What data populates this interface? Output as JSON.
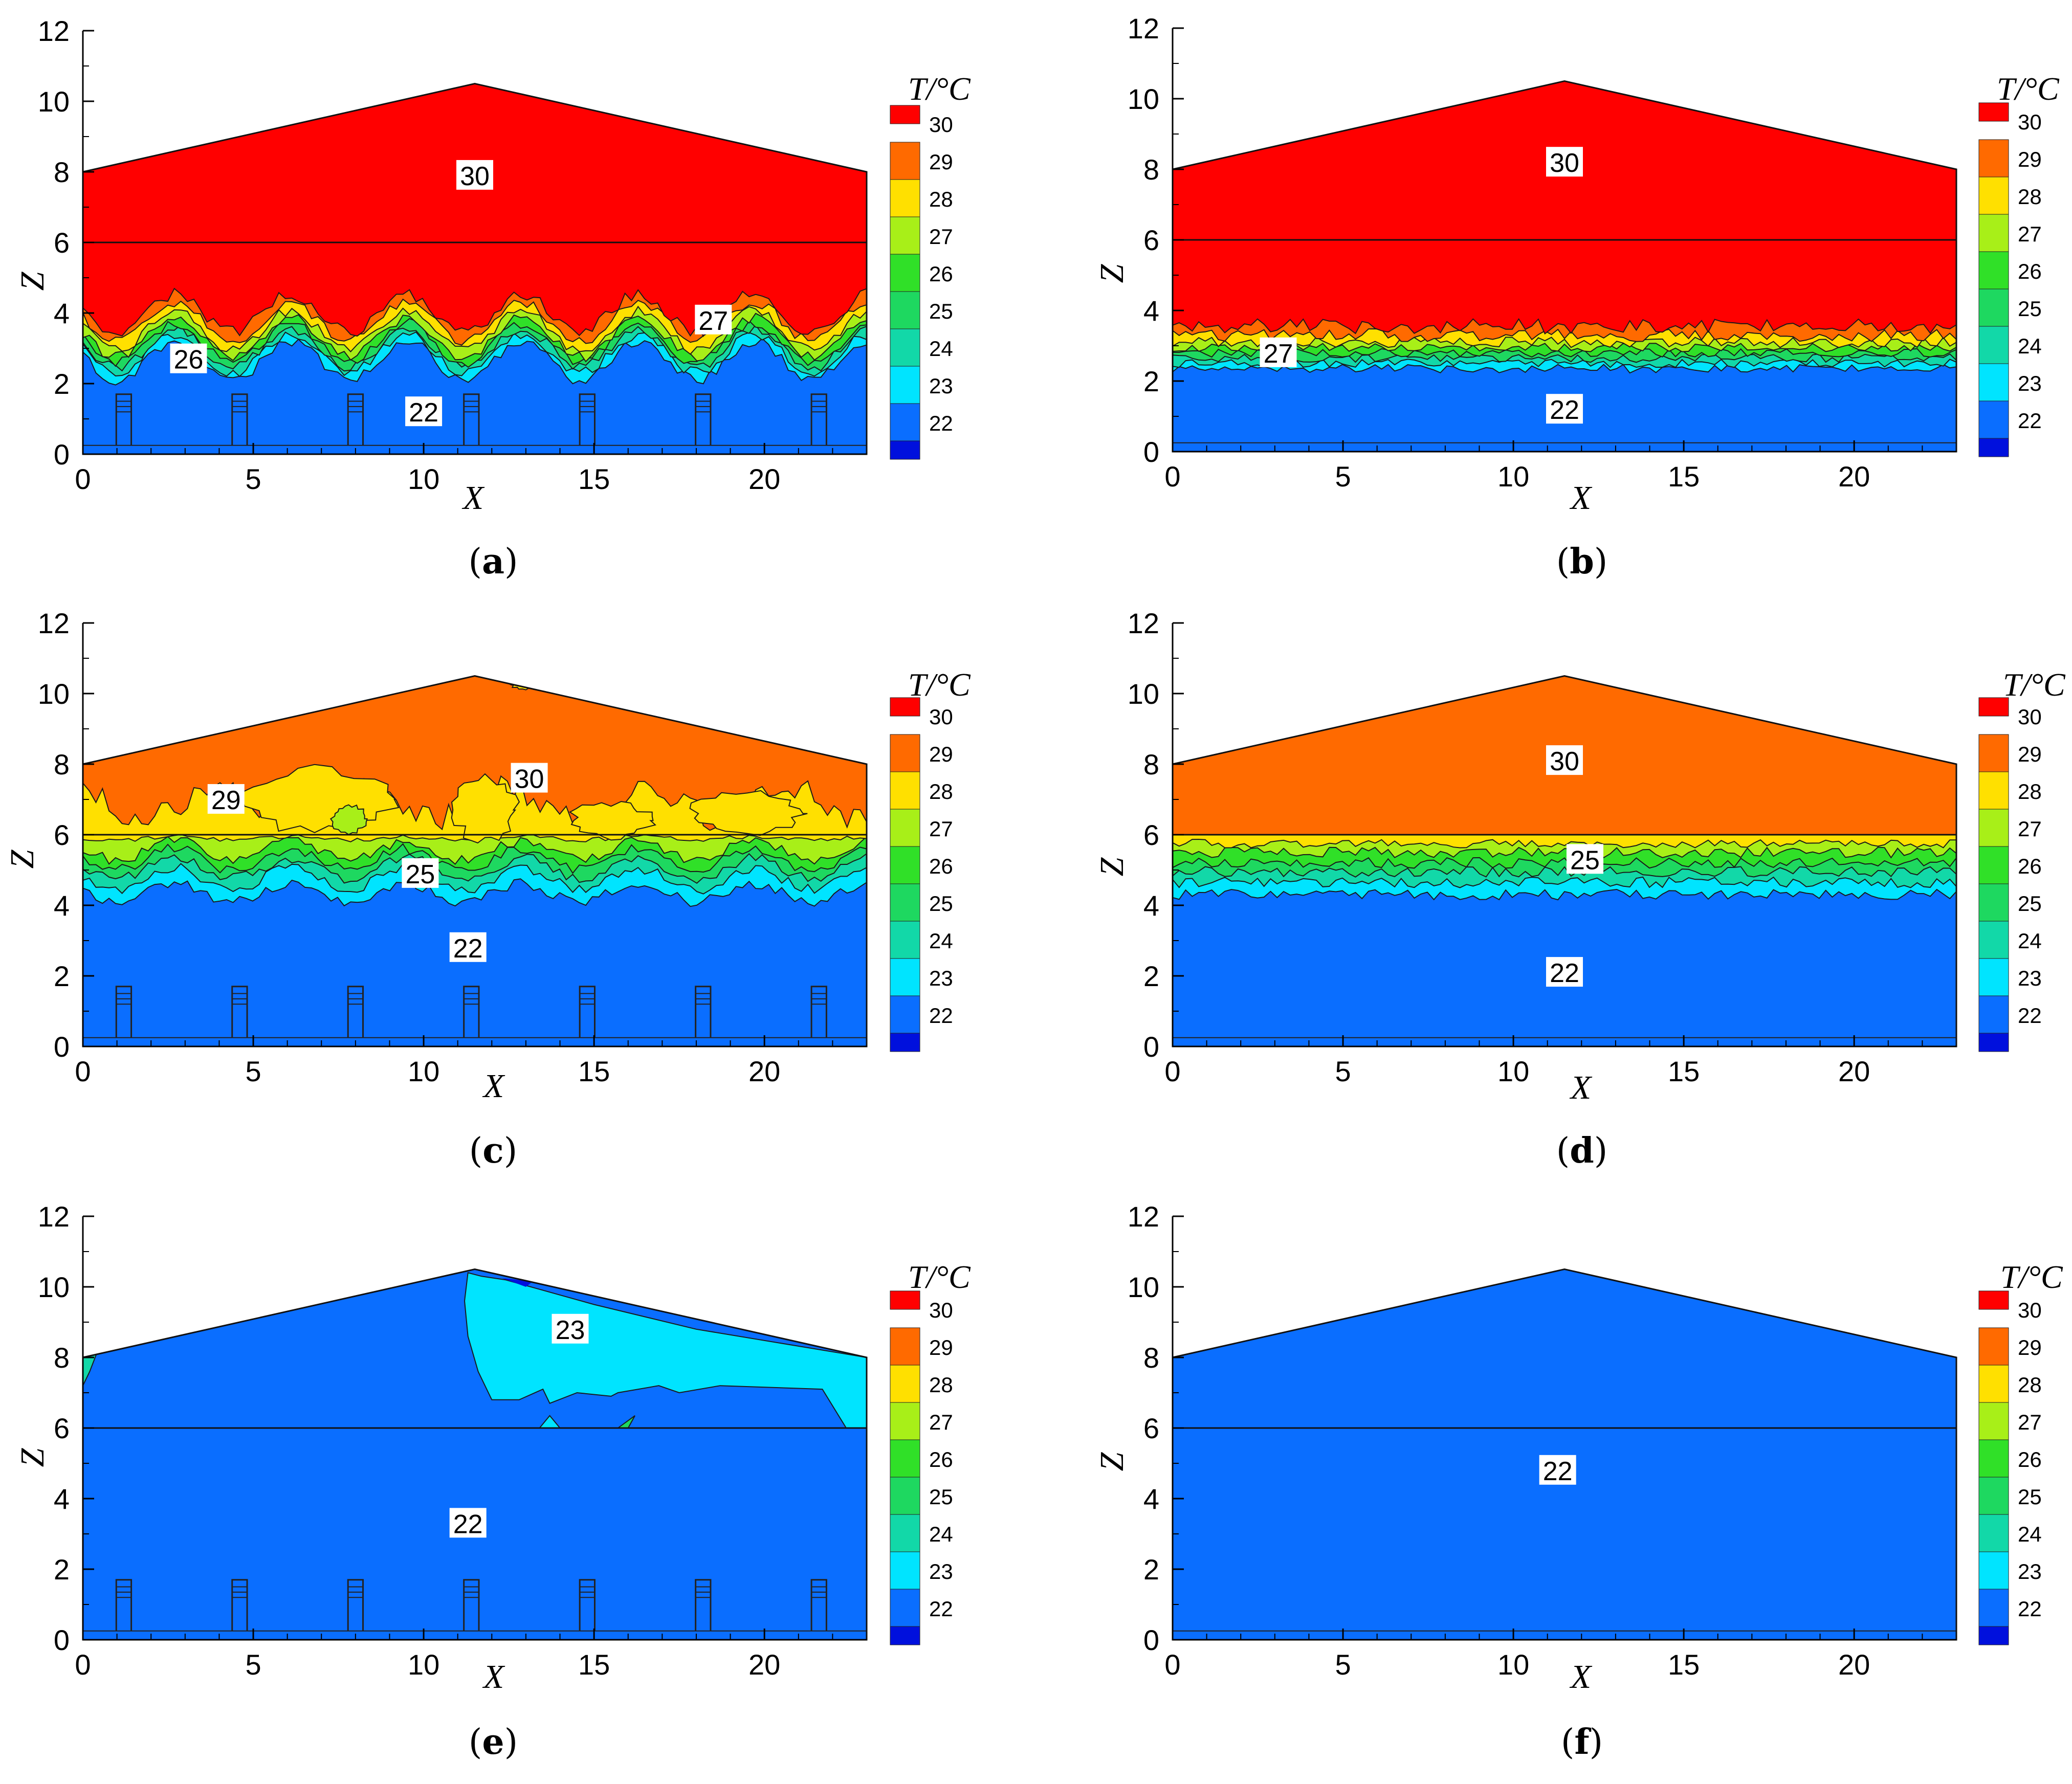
{
  "figure": {
    "colorbar": {
      "title": "T/°C",
      "labels": [
        "30",
        "29",
        "28",
        "27",
        "26",
        "25",
        "24",
        "23",
        "22"
      ],
      "colors": [
        "#ff0000",
        "#ff6a00",
        "#ffe000",
        "#a8ef18",
        "#30e028",
        "#1ed860",
        "#12d8a8",
        "#00e4ff",
        "#0a6eff",
        "#0010dd"
      ]
    }
  },
  "chart_data": [
    {
      "type": "contour",
      "panel": "a",
      "caption_letter": "a",
      "xlabel": "X",
      "ylabel": "Z",
      "xlim": [
        0,
        23
      ],
      "ylim": [
        0,
        12
      ],
      "xticks": [
        "0",
        "5",
        "10",
        "15",
        "20"
      ],
      "yticks": [
        "0",
        "2",
        "4",
        "6",
        "8",
        "10",
        "12"
      ],
      "roof_profile": [
        [
          0,
          8
        ],
        [
          11.5,
          10.5
        ],
        [
          23,
          8
        ]
      ],
      "inlets_x": [
        1.2,
        4.6,
        8,
        11.4,
        14.8,
        18.2,
        21.6
      ],
      "base_color": "#0a6eff",
      "layers": [
        {
          "level": 23,
          "color": "#00e4ff",
          "z_mean": 2.65,
          "amp": 0.55,
          "wavelength": 3.4,
          "phase": 1.3,
          "noise": 0.05
        },
        {
          "level": 24,
          "color": "#12d8a8",
          "z_mean": 2.85,
          "amp": 0.55,
          "wavelength": 3.4,
          "phase": 1.3,
          "noise": 0.05
        },
        {
          "level": 25,
          "color": "#1ed860",
          "z_mean": 3.0,
          "amp": 0.55,
          "wavelength": 3.4,
          "phase": 1.3,
          "noise": 0.05
        },
        {
          "level": 26,
          "color": "#30e028",
          "z_mean": 3.15,
          "amp": 0.55,
          "wavelength": 3.4,
          "phase": 1.3,
          "noise": 0.05
        },
        {
          "level": 27,
          "color": "#a8ef18",
          "z_mean": 3.3,
          "amp": 0.55,
          "wavelength": 3.4,
          "phase": 1.3,
          "noise": 0.05
        },
        {
          "level": 28,
          "color": "#ffe000",
          "z_mean": 3.5,
          "amp": 0.55,
          "wavelength": 3.4,
          "phase": 1.3,
          "noise": 0.05
        },
        {
          "level": 29,
          "color": "#ff6a00",
          "z_mean": 3.75,
          "amp": 0.55,
          "wavelength": 3.4,
          "phase": 1.3,
          "noise": 0.05
        },
        {
          "level": 30,
          "color": "#ff0000",
          "z_mean": 4.0,
          "amp": 0.55,
          "wavelength": 3.4,
          "phase": 1.3,
          "noise": 0.06
        }
      ],
      "blobs": [],
      "contour_labels": [
        {
          "text": "30",
          "x": 11.5,
          "z": 7.9
        },
        {
          "text": "27",
          "x": 18.5,
          "z": 3.8
        },
        {
          "text": "26",
          "x": 3.1,
          "z": 2.7
        },
        {
          "text": "22",
          "x": 10,
          "z": 1.2
        }
      ]
    },
    {
      "type": "contour",
      "panel": "b",
      "caption_letter": "b",
      "xlabel": "X",
      "ylabel": "Z",
      "xlim": [
        0,
        23
      ],
      "ylim": [
        0,
        12
      ],
      "xticks": [
        "0",
        "5",
        "10",
        "15",
        "20"
      ],
      "yticks": [
        "0",
        "2",
        "4",
        "6",
        "8",
        "10",
        "12"
      ],
      "roof_profile": [
        [
          0,
          8
        ],
        [
          11.5,
          10.5
        ],
        [
          23,
          8
        ]
      ],
      "inlets_x": [],
      "base_color": "#0a6eff",
      "layers": [
        {
          "level": 23,
          "color": "#00e4ff",
          "z_mean": 2.35,
          "amp": 0.0,
          "wavelength": 5,
          "phase": 0,
          "noise": 0.04
        },
        {
          "level": 24,
          "color": "#12d8a8",
          "z_mean": 2.5,
          "amp": 0.0,
          "wavelength": 5,
          "phase": 0,
          "noise": 0.04
        },
        {
          "level": 25,
          "color": "#1ed860",
          "z_mean": 2.65,
          "amp": 0.0,
          "wavelength": 5,
          "phase": 0,
          "noise": 0.04
        },
        {
          "level": 26,
          "color": "#30e028",
          "z_mean": 2.8,
          "amp": 0.0,
          "wavelength": 5,
          "phase": 0,
          "noise": 0.04
        },
        {
          "level": 27,
          "color": "#a8ef18",
          "z_mean": 2.95,
          "amp": 0.0,
          "wavelength": 5,
          "phase": 0,
          "noise": 0.04
        },
        {
          "level": 28,
          "color": "#ffe000",
          "z_mean": 3.1,
          "amp": 0.0,
          "wavelength": 5,
          "phase": 0,
          "noise": 0.05
        },
        {
          "level": 29,
          "color": "#ff6a00",
          "z_mean": 3.3,
          "amp": 0.0,
          "wavelength": 5,
          "phase": 0,
          "noise": 0.06
        },
        {
          "level": 30,
          "color": "#ff0000",
          "z_mean": 3.55,
          "amp": 0.0,
          "wavelength": 5,
          "phase": 0,
          "noise": 0.07
        }
      ],
      "blobs": [],
      "contour_labels": [
        {
          "text": "30",
          "x": 11.5,
          "z": 8.2
        },
        {
          "text": "27",
          "x": 3.1,
          "z": 2.8
        },
        {
          "text": "22",
          "x": 11.5,
          "z": 1.2
        }
      ]
    },
    {
      "type": "contour",
      "panel": "c",
      "caption_letter": "c",
      "xlabel": "X",
      "ylabel": "Z",
      "xlim": [
        0,
        23
      ],
      "ylim": [
        0,
        12
      ],
      "xticks": [
        "0",
        "5",
        "10",
        "15",
        "20"
      ],
      "yticks": [
        "0",
        "2",
        "4",
        "6",
        "8",
        "10",
        "12"
      ],
      "roof_profile": [
        [
          0,
          8
        ],
        [
          11.5,
          10.5
        ],
        [
          23,
          8
        ]
      ],
      "inlets_x": [
        1.2,
        4.6,
        8,
        11.4,
        14.8,
        18.2,
        21.6
      ],
      "base_color": "#0a6eff",
      "layers": [
        {
          "level": 23,
          "color": "#00e4ff",
          "z_mean": 4.35,
          "amp": 0.25,
          "wavelength": 3.4,
          "phase": 1.3,
          "noise": 0.05
        },
        {
          "level": 24,
          "color": "#12d8a8",
          "z_mean": 4.75,
          "amp": 0.3,
          "wavelength": 3.4,
          "phase": 1.3,
          "noise": 0.05
        },
        {
          "level": 25,
          "color": "#1ed860",
          "z_mean": 5.05,
          "amp": 0.3,
          "wavelength": 3.4,
          "phase": 1.3,
          "noise": 0.05
        },
        {
          "level": 26,
          "color": "#30e028",
          "z_mean": 5.3,
          "amp": 0.3,
          "wavelength": 3.4,
          "phase": 1.3,
          "noise": 0.05
        },
        {
          "level": 27,
          "color": "#a8ef18",
          "z_mean": 5.55,
          "amp": 0.28,
          "wavelength": 3.4,
          "phase": 1.3,
          "noise": 0.05
        },
        {
          "level": 28,
          "color": "#ffe000",
          "z_mean": 5.9,
          "amp": 0.05,
          "wavelength": 3.4,
          "phase": 1.3,
          "noise": 0.02
        },
        {
          "level": 29,
          "color": "#ff6a00",
          "z_mean": 6.9,
          "amp": 0.45,
          "wavelength": 4.2,
          "phase": 0.4,
          "noise": 0.12
        }
      ],
      "blobs": [
        {
          "color": "#ffe000",
          "cx": 6.8,
          "cz": 7.0,
          "rx": 2.2,
          "rz": 0.9
        },
        {
          "color": "#ffe000",
          "cx": 11.8,
          "cz": 6.7,
          "rx": 0.9,
          "rz": 0.9
        },
        {
          "color": "#ffe000",
          "cx": 15.5,
          "cz": 6.4,
          "rx": 1.2,
          "rz": 0.5
        },
        {
          "color": "#ffe000",
          "cx": 19.5,
          "cz": 6.6,
          "rx": 1.6,
          "rz": 0.6
        },
        {
          "color": "#a8ef18",
          "cx": 7.8,
          "cz": 6.45,
          "rx": 0.5,
          "rz": 0.4
        },
        {
          "color": "#ffe000",
          "cx": 13.0,
          "cz": 10.3,
          "rx": 0.45,
          "rz": 0.18
        }
      ],
      "contour_labels": [
        {
          "text": "29",
          "x": 4.2,
          "z": 7.0
        },
        {
          "text": "30",
          "x": 13.1,
          "z": 7.6
        },
        {
          "text": "25",
          "x": 9.9,
          "z": 4.9
        },
        {
          "text": "22",
          "x": 11.3,
          "z": 2.8
        }
      ]
    },
    {
      "type": "contour",
      "panel": "d",
      "caption_letter": "d",
      "xlabel": "X",
      "ylabel": "Z",
      "xlim": [
        0,
        23
      ],
      "ylim": [
        0,
        12
      ],
      "xticks": [
        "0",
        "5",
        "10",
        "15",
        "20"
      ],
      "yticks": [
        "0",
        "2",
        "4",
        "6",
        "8",
        "10",
        "12"
      ],
      "roof_profile": [
        [
          0,
          8
        ],
        [
          11.5,
          10.5
        ],
        [
          23,
          8
        ]
      ],
      "inlets_x": [],
      "base_color": "#0a6eff",
      "layers": [
        {
          "level": 23,
          "color": "#00e4ff",
          "z_mean": 4.3,
          "amp": 0.0,
          "wavelength": 5,
          "phase": 0,
          "noise": 0.05
        },
        {
          "level": 24,
          "color": "#12d8a8",
          "z_mean": 4.65,
          "amp": 0.0,
          "wavelength": 5,
          "phase": 0,
          "noise": 0.05
        },
        {
          "level": 25,
          "color": "#1ed860",
          "z_mean": 4.95,
          "amp": 0.0,
          "wavelength": 5,
          "phase": 0,
          "noise": 0.05
        },
        {
          "level": 26,
          "color": "#30e028",
          "z_mean": 5.2,
          "amp": 0.0,
          "wavelength": 5,
          "phase": 0,
          "noise": 0.05
        },
        {
          "level": 27,
          "color": "#a8ef18",
          "z_mean": 5.5,
          "amp": 0.0,
          "wavelength": 5,
          "phase": 0,
          "noise": 0.05
        },
        {
          "level": 28,
          "color": "#ffe000",
          "z_mean": 5.75,
          "amp": 0.0,
          "wavelength": 5,
          "phase": 0,
          "noise": 0.04
        },
        {
          "level": 29,
          "color": "#ff6a00",
          "z_mean": 6.0,
          "amp": 0.0,
          "wavelength": 5,
          "phase": 0,
          "noise": 0.0
        }
      ],
      "blobs": [],
      "contour_labels": [
        {
          "text": "30",
          "x": 11.5,
          "z": 8.1
        },
        {
          "text": "25",
          "x": 12.1,
          "z": 5.3
        },
        {
          "text": "22",
          "x": 11.5,
          "z": 2.1
        }
      ]
    },
    {
      "type": "contour",
      "panel": "e",
      "caption_letter": "e",
      "xlabel": "X",
      "ylabel": "Z",
      "xlim": [
        0,
        23
      ],
      "ylim": [
        0,
        12
      ],
      "xticks": [
        "0",
        "5",
        "10",
        "15",
        "20"
      ],
      "yticks": [
        "0",
        "2",
        "4",
        "6",
        "8",
        "10",
        "12"
      ],
      "roof_profile": [
        [
          0,
          8
        ],
        [
          11.5,
          10.5
        ],
        [
          23,
          8
        ]
      ],
      "inlets_x": [
        1.2,
        4.6,
        8,
        11.4,
        14.8,
        18.2,
        21.6
      ],
      "base_color": "#0a6eff",
      "layers": [],
      "blobs": [],
      "cyan_region": [
        [
          11.3,
          10.4
        ],
        [
          11.7,
          10.3
        ],
        [
          12.4,
          10.2
        ],
        [
          15,
          9.5
        ],
        [
          18,
          8.8
        ],
        [
          23,
          8.0
        ],
        [
          23,
          6.0
        ],
        [
          22.4,
          6.0
        ],
        [
          21.7,
          7.1
        ],
        [
          18.7,
          7.2
        ],
        [
          17.5,
          7.0
        ],
        [
          16.9,
          7.2
        ],
        [
          15.7,
          7.0
        ],
        [
          15.5,
          6.9
        ],
        [
          14.5,
          7.0
        ],
        [
          13.7,
          6.7
        ],
        [
          13.5,
          7.1
        ],
        [
          12.8,
          6.8
        ],
        [
          12.0,
          6.8
        ],
        [
          11.6,
          7.6
        ],
        [
          11.3,
          8.6
        ],
        [
          11.2,
          9.6
        ]
      ],
      "contour_labels": [
        {
          "text": "23",
          "x": 14.3,
          "z": 8.8
        },
        {
          "text": "22",
          "x": 11.3,
          "z": 3.3
        }
      ]
    },
    {
      "type": "contour",
      "panel": "f",
      "caption_letter": "f",
      "xlabel": "X",
      "ylabel": "Z",
      "xlim": [
        0,
        23
      ],
      "ylim": [
        0,
        12
      ],
      "xticks": [
        "0",
        "5",
        "10",
        "15",
        "20"
      ],
      "yticks": [
        "0",
        "2",
        "4",
        "6",
        "8",
        "10",
        "12"
      ],
      "roof_profile": [
        [
          0,
          8
        ],
        [
          11.5,
          10.5
        ],
        [
          23,
          8
        ]
      ],
      "inlets_x": [],
      "base_color": "#0a6eff",
      "layers": [],
      "blobs": [],
      "contour_labels": [
        {
          "text": "22",
          "x": 11.3,
          "z": 4.8
        }
      ]
    }
  ]
}
